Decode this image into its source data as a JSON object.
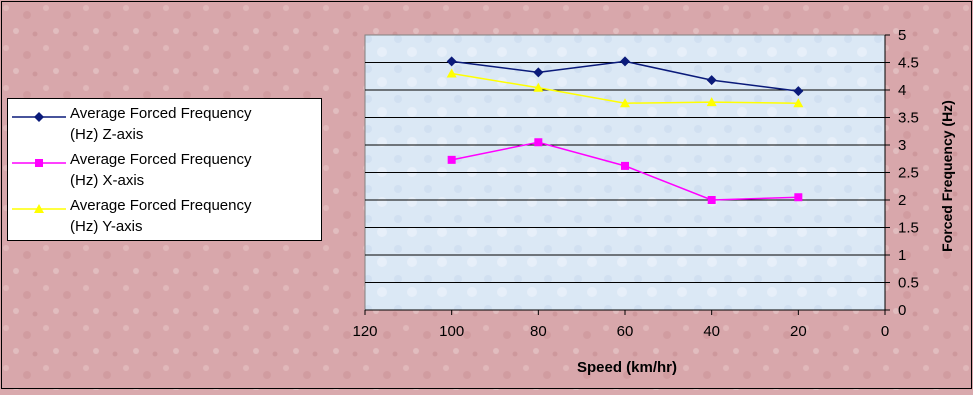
{
  "chart_data": {
    "type": "line",
    "title": "",
    "xlabel": "Speed (km/hr)",
    "ylabel": "Forced Frequency (Hz)",
    "x": [
      100,
      80,
      60,
      40,
      20
    ],
    "xlim": [
      120,
      0
    ],
    "x_reversed": true,
    "x_ticks": [
      "120",
      "100",
      "80",
      "60",
      "40",
      "20",
      "0"
    ],
    "ylim": [
      0,
      5
    ],
    "y_axis_side": "right",
    "y_ticks": [
      "0",
      "0.5",
      "1",
      "1.5",
      "2",
      "2.5",
      "3",
      "3.5",
      "4",
      "4.5",
      "5"
    ],
    "grid": true,
    "legend_position": "left",
    "plot_background": "#dde9f5",
    "page_background": "#d9a9ad",
    "series": [
      {
        "name": "Average Forced Frequency (Hz) Z-axis",
        "values": [
          4.52,
          4.32,
          4.52,
          4.18,
          3.98
        ],
        "color": "#0a1a7a",
        "marker": "diamond"
      },
      {
        "name": "Average Forced Frequency (Hz) X-axis",
        "values": [
          2.73,
          3.05,
          2.62,
          2.0,
          2.05
        ],
        "color": "#ff00ff",
        "marker": "square"
      },
      {
        "name": "Average Forced Frequency (Hz) Y-axis",
        "values": [
          4.3,
          4.04,
          3.76,
          3.78,
          3.76
        ],
        "color": "#ffff00",
        "marker": "triangle"
      }
    ]
  },
  "legend": {
    "items": [
      {
        "line1": "Average Forced Frequency",
        "line2": "(Hz) Z-axis"
      },
      {
        "line1": "Average Forced Frequency",
        "line2": "(Hz) X-axis"
      },
      {
        "line1": "Average Forced Frequency",
        "line2": "(Hz) Y-axis"
      }
    ]
  }
}
